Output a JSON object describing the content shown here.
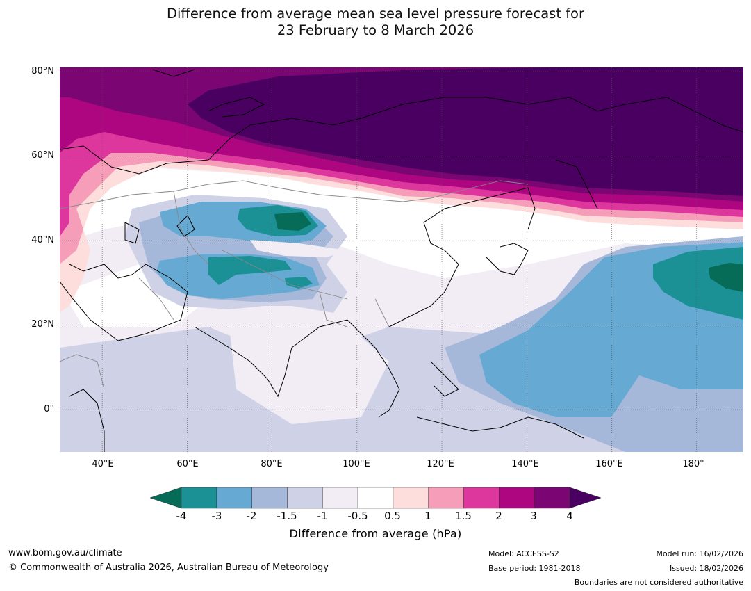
{
  "title": {
    "line1": "Difference from average mean sea level pressure forecast for",
    "line2": "23 February to 8 March 2026"
  },
  "map": {
    "lat_labels": [
      "80°N",
      "60°N",
      "40°N",
      "20°N",
      "0°"
    ],
    "lon_labels": [
      "40°E",
      "60°E",
      "80°E",
      "100°E",
      "120°E",
      "140°E",
      "160°E",
      "180°"
    ],
    "extent": {
      "lon_min": 30,
      "lon_max": 191,
      "lat_min": -10,
      "lat_max": 81
    }
  },
  "colorbar": {
    "title": "Difference from average (hPa)",
    "ticks": [
      "-4",
      "-3",
      "-2",
      "-1.5",
      "-1",
      "-0.5",
      "0.5",
      "1",
      "1.5",
      "2",
      "3",
      "4"
    ],
    "colors": [
      "#066c58",
      "#1b9196",
      "#66aad3",
      "#a6b8d9",
      "#cfd2e6",
      "#f2edf5",
      "#ffffff",
      "#fddedd",
      "#f69eb9",
      "#dd369d",
      "#ad0680",
      "#7b0673",
      "#4a0061"
    ]
  },
  "footer": {
    "url": "www.bom.gov.au/climate",
    "copyright": "© Commonwealth of Australia 2026, Australian Bureau of Meteorology",
    "model": "Model: ACCESS-S2",
    "base_period": "Base period: 1981-2018",
    "model_run": "Model run: 16/02/2026",
    "issued": "Issued: 18/02/2026",
    "disclaimer": "Boundaries are not considered authoritative"
  }
}
